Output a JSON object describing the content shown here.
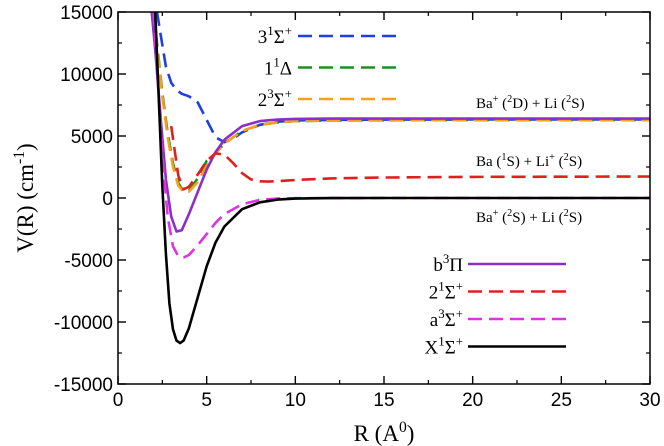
{
  "chart_data": {
    "type": "line",
    "xlabel": {
      "main": "R (A",
      "sup": "0",
      "tail": ")"
    },
    "ylabel": {
      "main": "V(R) (cm",
      "sup": "-1",
      "tail": ")"
    },
    "xlim": [
      0,
      30
    ],
    "ylim": [
      -15000,
      15000
    ],
    "x_ticks": [
      0,
      5,
      10,
      15,
      20,
      25,
      30
    ],
    "x_tick_labels": [
      "0",
      "5",
      "10",
      "15",
      "20",
      "25",
      "30"
    ],
    "y_ticks": [
      -15000,
      -10000,
      -5000,
      0,
      5000,
      10000,
      15000
    ],
    "y_tick_labels": [
      "-15000",
      "-10000",
      "-5000",
      "0",
      "5000",
      "10000",
      "15000"
    ],
    "grid": false,
    "series": [
      {
        "id": "s31Sigma",
        "label": {
          "pre": "3",
          "s1": "1",
          "mid": "Σ",
          "s2": "+"
        },
        "color": "#1f3fe0",
        "dash": "dashed",
        "legend": "top",
        "x": [
          2.2,
          2.45,
          2.7,
          3.0,
          3.3,
          3.6,
          4.0,
          4.5,
          5.0,
          5.5,
          6.0,
          6.5,
          7.0,
          8.0,
          9.0,
          10,
          12,
          15,
          20,
          25,
          30
        ],
        "y": [
          15000,
          12800,
          10600,
          9300,
          8700,
          8400,
          8200,
          7700,
          6300,
          4900,
          4500,
          4800,
          5300,
          5900,
          6150,
          6250,
          6300,
          6320,
          6330,
          6330,
          6330
        ]
      },
      {
        "id": "s11Delta",
        "label": {
          "pre": "1",
          "s1": "1",
          "mid": "Δ",
          "s2": ""
        },
        "color": "#1f8f1f",
        "dash": "dashed",
        "legend": "top",
        "x": [
          2.0,
          2.2,
          2.5,
          2.8,
          3.1,
          3.4,
          3.7,
          4.0,
          4.5,
          5.0,
          5.5,
          6.0,
          7.0,
          8.0,
          9.0,
          10,
          12,
          15,
          20,
          25,
          30
        ],
        "y": [
          15000,
          12500,
          8500,
          5200,
          2800,
          1200,
          500,
          600,
          1600,
          3000,
          3600,
          4400,
          5400,
          5900,
          6100,
          6200,
          6250,
          6270,
          6280,
          6280,
          6280
        ]
      },
      {
        "id": "s23Sigma",
        "label": {
          "pre": "2",
          "s1": "3",
          "mid": "Σ",
          "s2": "+"
        },
        "color": "#f5a020",
        "dash": "dashed",
        "legend": "top",
        "x": [
          2.0,
          2.2,
          2.5,
          2.8,
          3.1,
          3.4,
          3.7,
          4.0,
          4.5,
          5.0,
          5.5,
          6.0,
          7.0,
          8.0,
          9.0,
          10,
          12,
          15,
          20,
          25,
          30
        ],
        "y": [
          15000,
          12300,
          8200,
          4900,
          2500,
          1000,
          450,
          500,
          1300,
          2600,
          3600,
          4400,
          5400,
          5900,
          6100,
          6200,
          6250,
          6270,
          6280,
          6280,
          6280
        ]
      },
      {
        "id": "b3Pi",
        "label": {
          "pre": "b",
          "s1": "3",
          "mid": "Π",
          "s2": ""
        },
        "color": "#8a2fc9",
        "dash": "solid",
        "legend": "bottom",
        "x": [
          1.9,
          2.1,
          2.4,
          2.7,
          3.0,
          3.3,
          3.6,
          4.0,
          4.5,
          5.0,
          5.5,
          6.0,
          7.0,
          8.0,
          9.0,
          10,
          12,
          15,
          20,
          25,
          30
        ],
        "y": [
          15000,
          12000,
          6500,
          1500,
          -1500,
          -2700,
          -2600,
          -1300,
          500,
          2300,
          3700,
          4700,
          5800,
          6200,
          6330,
          6380,
          6400,
          6400,
          6400,
          6400,
          6400
        ]
      },
      {
        "id": "s21Sigma",
        "label": {
          "pre": "2",
          "s1": "1",
          "mid": "Σ",
          "s2": "+"
        },
        "color": "#e02020",
        "dash": "dashed",
        "legend": "bottom",
        "x": [
          3.0,
          3.4,
          3.7,
          4.0,
          4.5,
          5.0,
          5.5,
          6.0,
          6.5,
          7.0,
          7.5,
          8.0,
          8.5,
          9.0,
          10,
          12,
          15,
          20,
          25,
          30
        ],
        "y": [
          5800,
          1800,
          700,
          900,
          1900,
          3000,
          3600,
          3500,
          2800,
          2000,
          1500,
          1350,
          1320,
          1360,
          1450,
          1580,
          1650,
          1700,
          1720,
          1730
        ]
      },
      {
        "id": "a3Sigma",
        "label": {
          "pre": "a",
          "s1": "3",
          "mid": "Σ",
          "s2": "+"
        },
        "color": "#e033e0",
        "dash": "dashed",
        "legend": "bottom",
        "x": [
          2.0,
          2.2,
          2.5,
          2.8,
          3.1,
          3.4,
          3.7,
          4.0,
          4.5,
          5.0,
          5.5,
          6.0,
          7.0,
          8.0,
          9.0,
          10,
          12,
          15,
          20,
          25,
          30
        ],
        "y": [
          15000,
          10500,
          3500,
          -1500,
          -3900,
          -4700,
          -4800,
          -4600,
          -3800,
          -2900,
          -2000,
          -1300,
          -500,
          -150,
          -50,
          -20,
          -5,
          0,
          0,
          0,
          0
        ]
      },
      {
        "id": "X1Sigma",
        "label": {
          "pre": "X",
          "s1": "1",
          "mid": "Σ",
          "s2": "+"
        },
        "color": "#000000",
        "dash": "solid",
        "legend": "bottom",
        "x": [
          2.1,
          2.3,
          2.5,
          2.7,
          2.9,
          3.1,
          3.3,
          3.5,
          3.7,
          4.0,
          4.5,
          5.0,
          5.5,
          6.0,
          7.0,
          8.0,
          9.0,
          10,
          12,
          15,
          20,
          25,
          30
        ],
        "y": [
          15000,
          8000,
          1000,
          -4500,
          -8500,
          -10600,
          -11500,
          -11700,
          -11500,
          -10500,
          -8000,
          -5500,
          -3600,
          -2300,
          -900,
          -350,
          -130,
          -50,
          -10,
          0,
          0,
          0,
          0
        ]
      }
    ],
    "annotations": [
      {
        "id": "asym-top",
        "parts": [
          [
            "Ba",
            ""
          ],
          [
            "+",
            "sup"
          ],
          [
            " (",
            ""
          ],
          [
            "2",
            "sup"
          ],
          [
            "D) + Li (",
            ""
          ],
          [
            "2",
            "sup"
          ],
          [
            "S)",
            ""
          ]
        ]
      },
      {
        "id": "asym-mid",
        "parts": [
          [
            "Ba (",
            ""
          ],
          [
            "1",
            "sup"
          ],
          [
            "S) + Li",
            ""
          ],
          [
            "+",
            "sup"
          ],
          [
            " (",
            ""
          ],
          [
            "2",
            "sup"
          ],
          [
            "S)",
            ""
          ]
        ]
      },
      {
        "id": "asym-low",
        "parts": [
          [
            "Ba",
            ""
          ],
          [
            "+",
            "sup"
          ],
          [
            " (",
            ""
          ],
          [
            "2",
            "sup"
          ],
          [
            "S) + Li (",
            ""
          ],
          [
            "2",
            "sup"
          ],
          [
            "S)",
            ""
          ]
        ]
      }
    ]
  }
}
